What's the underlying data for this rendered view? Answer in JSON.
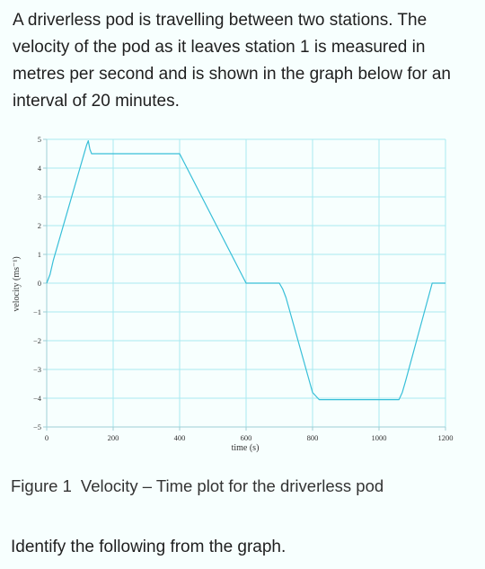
{
  "intro_text": "A driverless pod is travelling between two stations. The velocity of the pod as it leaves station 1 is measured in metres per second and is shown in the graph below for an interval of 20 minutes.",
  "caption": {
    "label": "Figure 1",
    "text": "Velocity – Time plot for the driverless pod"
  },
  "question": "Identify the following from the graph.",
  "colors": {
    "line": "#38bfd8",
    "grid": "#a8eaf0",
    "axis": "#9fcfd6",
    "tick_text": "#333333"
  },
  "chart_data": {
    "type": "line",
    "xlabel": "time (s)",
    "ylabel": "velocity (ms⁻¹)",
    "xlim": [
      0,
      1200
    ],
    "ylim": [
      -5,
      5
    ],
    "x_ticks": [
      0,
      200,
      400,
      600,
      800,
      1000,
      1200
    ],
    "y_ticks": [
      5,
      4,
      3,
      2,
      1,
      0,
      -1,
      -2,
      -3,
      -4,
      -5
    ],
    "grid": true,
    "series": [
      {
        "x": [
          0,
          10,
          20,
          120,
          125,
          130,
          135,
          400,
          600,
          700,
          710,
          720,
          800,
          820,
          1060,
          1070,
          1080,
          1160,
          1200
        ],
        "y": [
          0,
          0.3,
          0.8,
          4.8,
          4.95,
          4.65,
          4.5,
          4.5,
          0,
          0,
          -0.2,
          -0.5,
          -3.8,
          -4.05,
          -4.05,
          -3.8,
          -3.4,
          0,
          0
        ]
      }
    ]
  }
}
